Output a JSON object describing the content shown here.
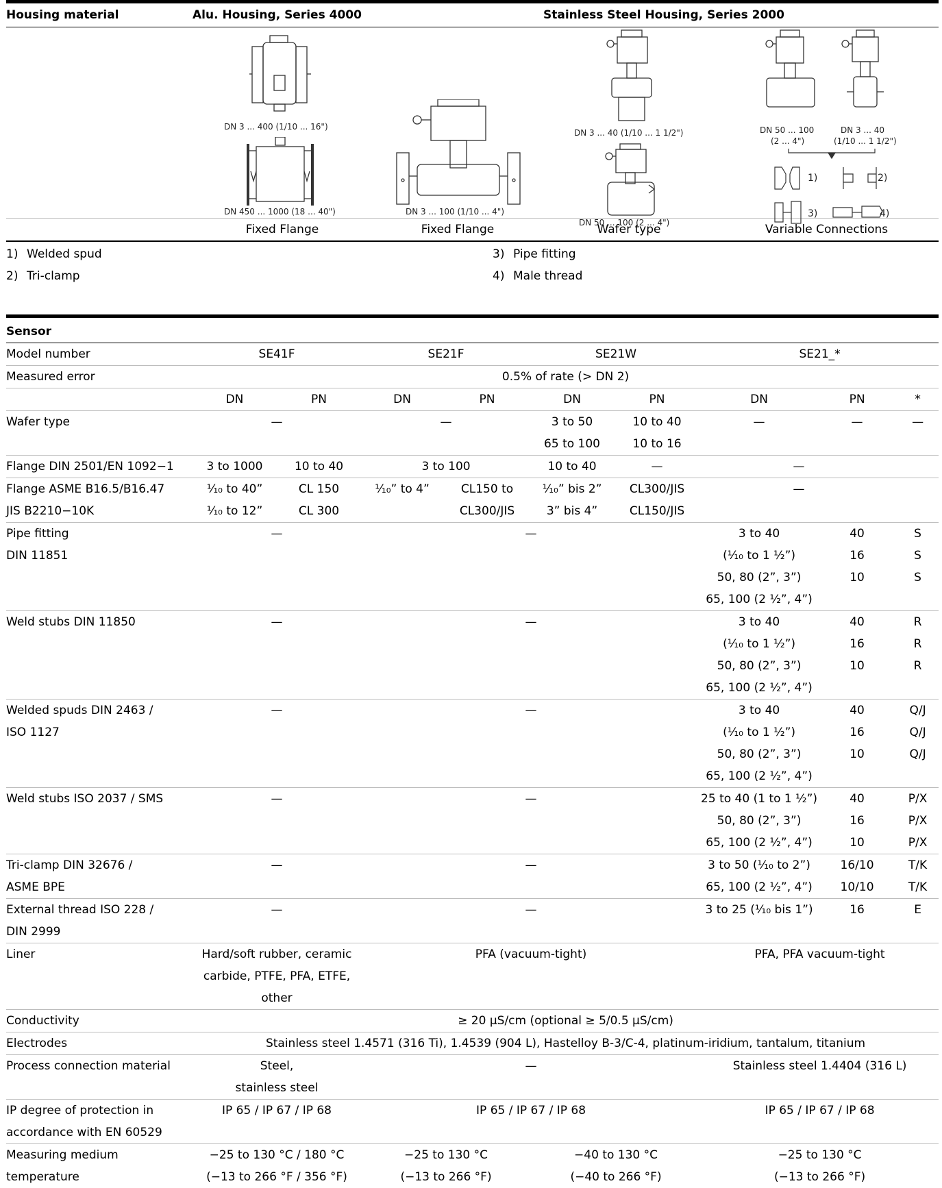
{
  "housing": {
    "header": {
      "label": "Housing material",
      "alu": "Alu. Housing, Series 4000",
      "stainless": "Stainless Steel Housing, Series 2000"
    },
    "captions": {
      "c1a": "DN 3 ... 400  (1/10 ... 16\")",
      "c1b": "DN 450 ... 1000  (18 ... 40\")",
      "c2": "DN 3 ... 100 (1/10 ... 4\")",
      "c3a": "DN 3 ... 40 (1/10 ... 1 1/2\")",
      "c3b": "DN 50 ... 100 (2 ... 4\")",
      "c4a1": "DN 50 ... 100",
      "c4a2": "(2 ... 4\")",
      "c4b1": "DN 3 ... 40",
      "c4b2": "(1/10 ... 1 1/2\")",
      "m1": "1)",
      "m2": "2)",
      "m3": "3)",
      "m4": "4)"
    },
    "types": [
      "Fixed Flange",
      "Fixed Flange",
      "Wafer type",
      "Variable Connections"
    ],
    "footnotes": [
      {
        "num": "1)",
        "text": "Welded spud"
      },
      {
        "num": "2)",
        "text": "Tri-clamp"
      },
      {
        "num": "3)",
        "text": "Pipe fitting"
      },
      {
        "num": "4)",
        "text": "Male thread"
      }
    ]
  },
  "sensor": {
    "title": "Sensor",
    "model": {
      "label": "Model number",
      "v": [
        "SE41F",
        "SE21F",
        "SE21W",
        "SE21_*"
      ]
    },
    "error": {
      "label": "Measured error",
      "v": "0.5% of rate (> DN 2)"
    },
    "sub": [
      "DN",
      "PN",
      "DN",
      "PN",
      "DN",
      "PN",
      "DN",
      "PN",
      "*"
    ],
    "wafer": {
      "label": "Wafer type",
      "dash": "—",
      "r1": [
        "3 to 50",
        "10 to 40"
      ],
      "r2": [
        "65 to 100",
        "10 to 16"
      ]
    },
    "flange_din": {
      "label": "Flange DIN 2501/EN 1092−1",
      "v": [
        "3 to 1000",
        "10 to 40",
        "3 to 100",
        "10 to 40",
        "—",
        "—"
      ]
    },
    "flange_asme": {
      "label1": "Flange ASME B16.5/B16.47",
      "label2": "JIS B2210−10K",
      "r1": [
        "¹⁄₁₀ to 40”",
        "CL 150",
        "¹⁄₁₀” to 4”",
        "CL150 to",
        "¹⁄₁₀” bis 2”",
        "CL300/JIS",
        "—"
      ],
      "r2": [
        "¹⁄₁₀ to 12”",
        "CL 300",
        "",
        "CL300/JIS",
        "3” bis 4”",
        "CL150/JIS"
      ]
    },
    "pipe": {
      "label1": "Pipe fitting",
      "label2": "DIN 11851",
      "rows": [
        [
          "3 to 40",
          "40",
          "S"
        ],
        [
          "(¹⁄₁₀ to 1 ½”)",
          "16",
          "S"
        ],
        [
          "50, 80 (2”, 3”)",
          "10",
          "S"
        ],
        [
          "65, 100 (2 ½”, 4”)",
          "",
          ""
        ]
      ]
    },
    "weld_din": {
      "label1": "Weld stubs DIN 11850",
      "rows": [
        [
          "3 to 40",
          "40",
          "R"
        ],
        [
          "(¹⁄₁₀ to 1 ½”)",
          "16",
          "R"
        ],
        [
          "50, 80 (2”, 3”)",
          "10",
          "R"
        ],
        [
          "65, 100 (2 ½”, 4”)",
          "",
          ""
        ]
      ]
    },
    "welded_spuds": {
      "label1": "Welded spuds DIN 2463 /",
      "label2": "ISO 1127",
      "rows": [
        [
          "3 to 40",
          "40",
          "Q/J"
        ],
        [
          "(¹⁄₁₀ to 1 ½”)",
          "16",
          "Q/J"
        ],
        [
          "50, 80 (2”, 3”)",
          "10",
          "Q/J"
        ],
        [
          "65, 100 (2 ½”, 4”)",
          "",
          ""
        ]
      ]
    },
    "weld_iso": {
      "label1": "Weld stubs ISO 2037 / SMS",
      "rows": [
        [
          "25 to 40 (1 to 1 ½”)",
          "40",
          "P/X"
        ],
        [
          "50, 80 (2”, 3”)",
          "16",
          "P/X"
        ],
        [
          "65, 100 (2 ½”, 4”)",
          "10",
          "P/X"
        ]
      ]
    },
    "triclamp": {
      "label1": "Tri-clamp DIN 32676 /",
      "label2": "ASME BPE",
      "rows": [
        [
          "3 to 50 (¹⁄₁₀ to 2”)",
          "16/10",
          "T/K"
        ],
        [
          "65, 100 (2 ½”, 4”)",
          "10/10",
          "T/K"
        ]
      ]
    },
    "ext_thread": {
      "label1": "External thread ISO 228 /",
      "label2": "DIN 2999",
      "rows": [
        [
          "3 to 25 (¹⁄₁₀ bis 1”)",
          "16",
          "E"
        ]
      ]
    },
    "liner": {
      "label": "Liner",
      "a": [
        "Hard/soft rubber, ceramic",
        "carbide, PTFE, PFA, ETFE,",
        "other"
      ],
      "b": "PFA (vacuum-tight)",
      "c": "PFA, PFA vacuum-tight"
    },
    "conductivity": {
      "label": "Conductivity",
      "v": "≥ 20 µS/cm (optional ≥ 5/0.5 µS/cm)"
    },
    "electrodes": {
      "label": "Electrodes",
      "v": "Stainless steel 1.4571 (316 Ti), 1.4539 (904 L), Hastelloy B-3/C-4, platinum-iridium, tantalum, titanium"
    },
    "pcm": {
      "label": "Process connection material",
      "a1": "Steel,",
      "a2": "stainless steel",
      "b": "—",
      "c": "Stainless steel 1.4404 (316 L)"
    },
    "ip": {
      "label1": "IP degree of protection in",
      "label2": "accordance with EN 60529",
      "v": [
        "IP 65 / IP 67 / IP 68",
        "IP 65 / IP 67 / IP 68",
        "IP 65 / IP 67 / IP 68"
      ]
    },
    "temp": {
      "label1": "Measuring medium",
      "label2": "temperature",
      "r1": [
        "−25 to 130 °C / 180 °C",
        "−25 to 130 °C",
        "−40 to 130 °C",
        "−25 to 130 °C"
      ],
      "r2": [
        "(−13 to 266 °F / 356 °F)",
        "(−13 to 266 °F)",
        "(−40 to 266 °F)",
        "(−13 to 266 °F)"
      ]
    }
  }
}
